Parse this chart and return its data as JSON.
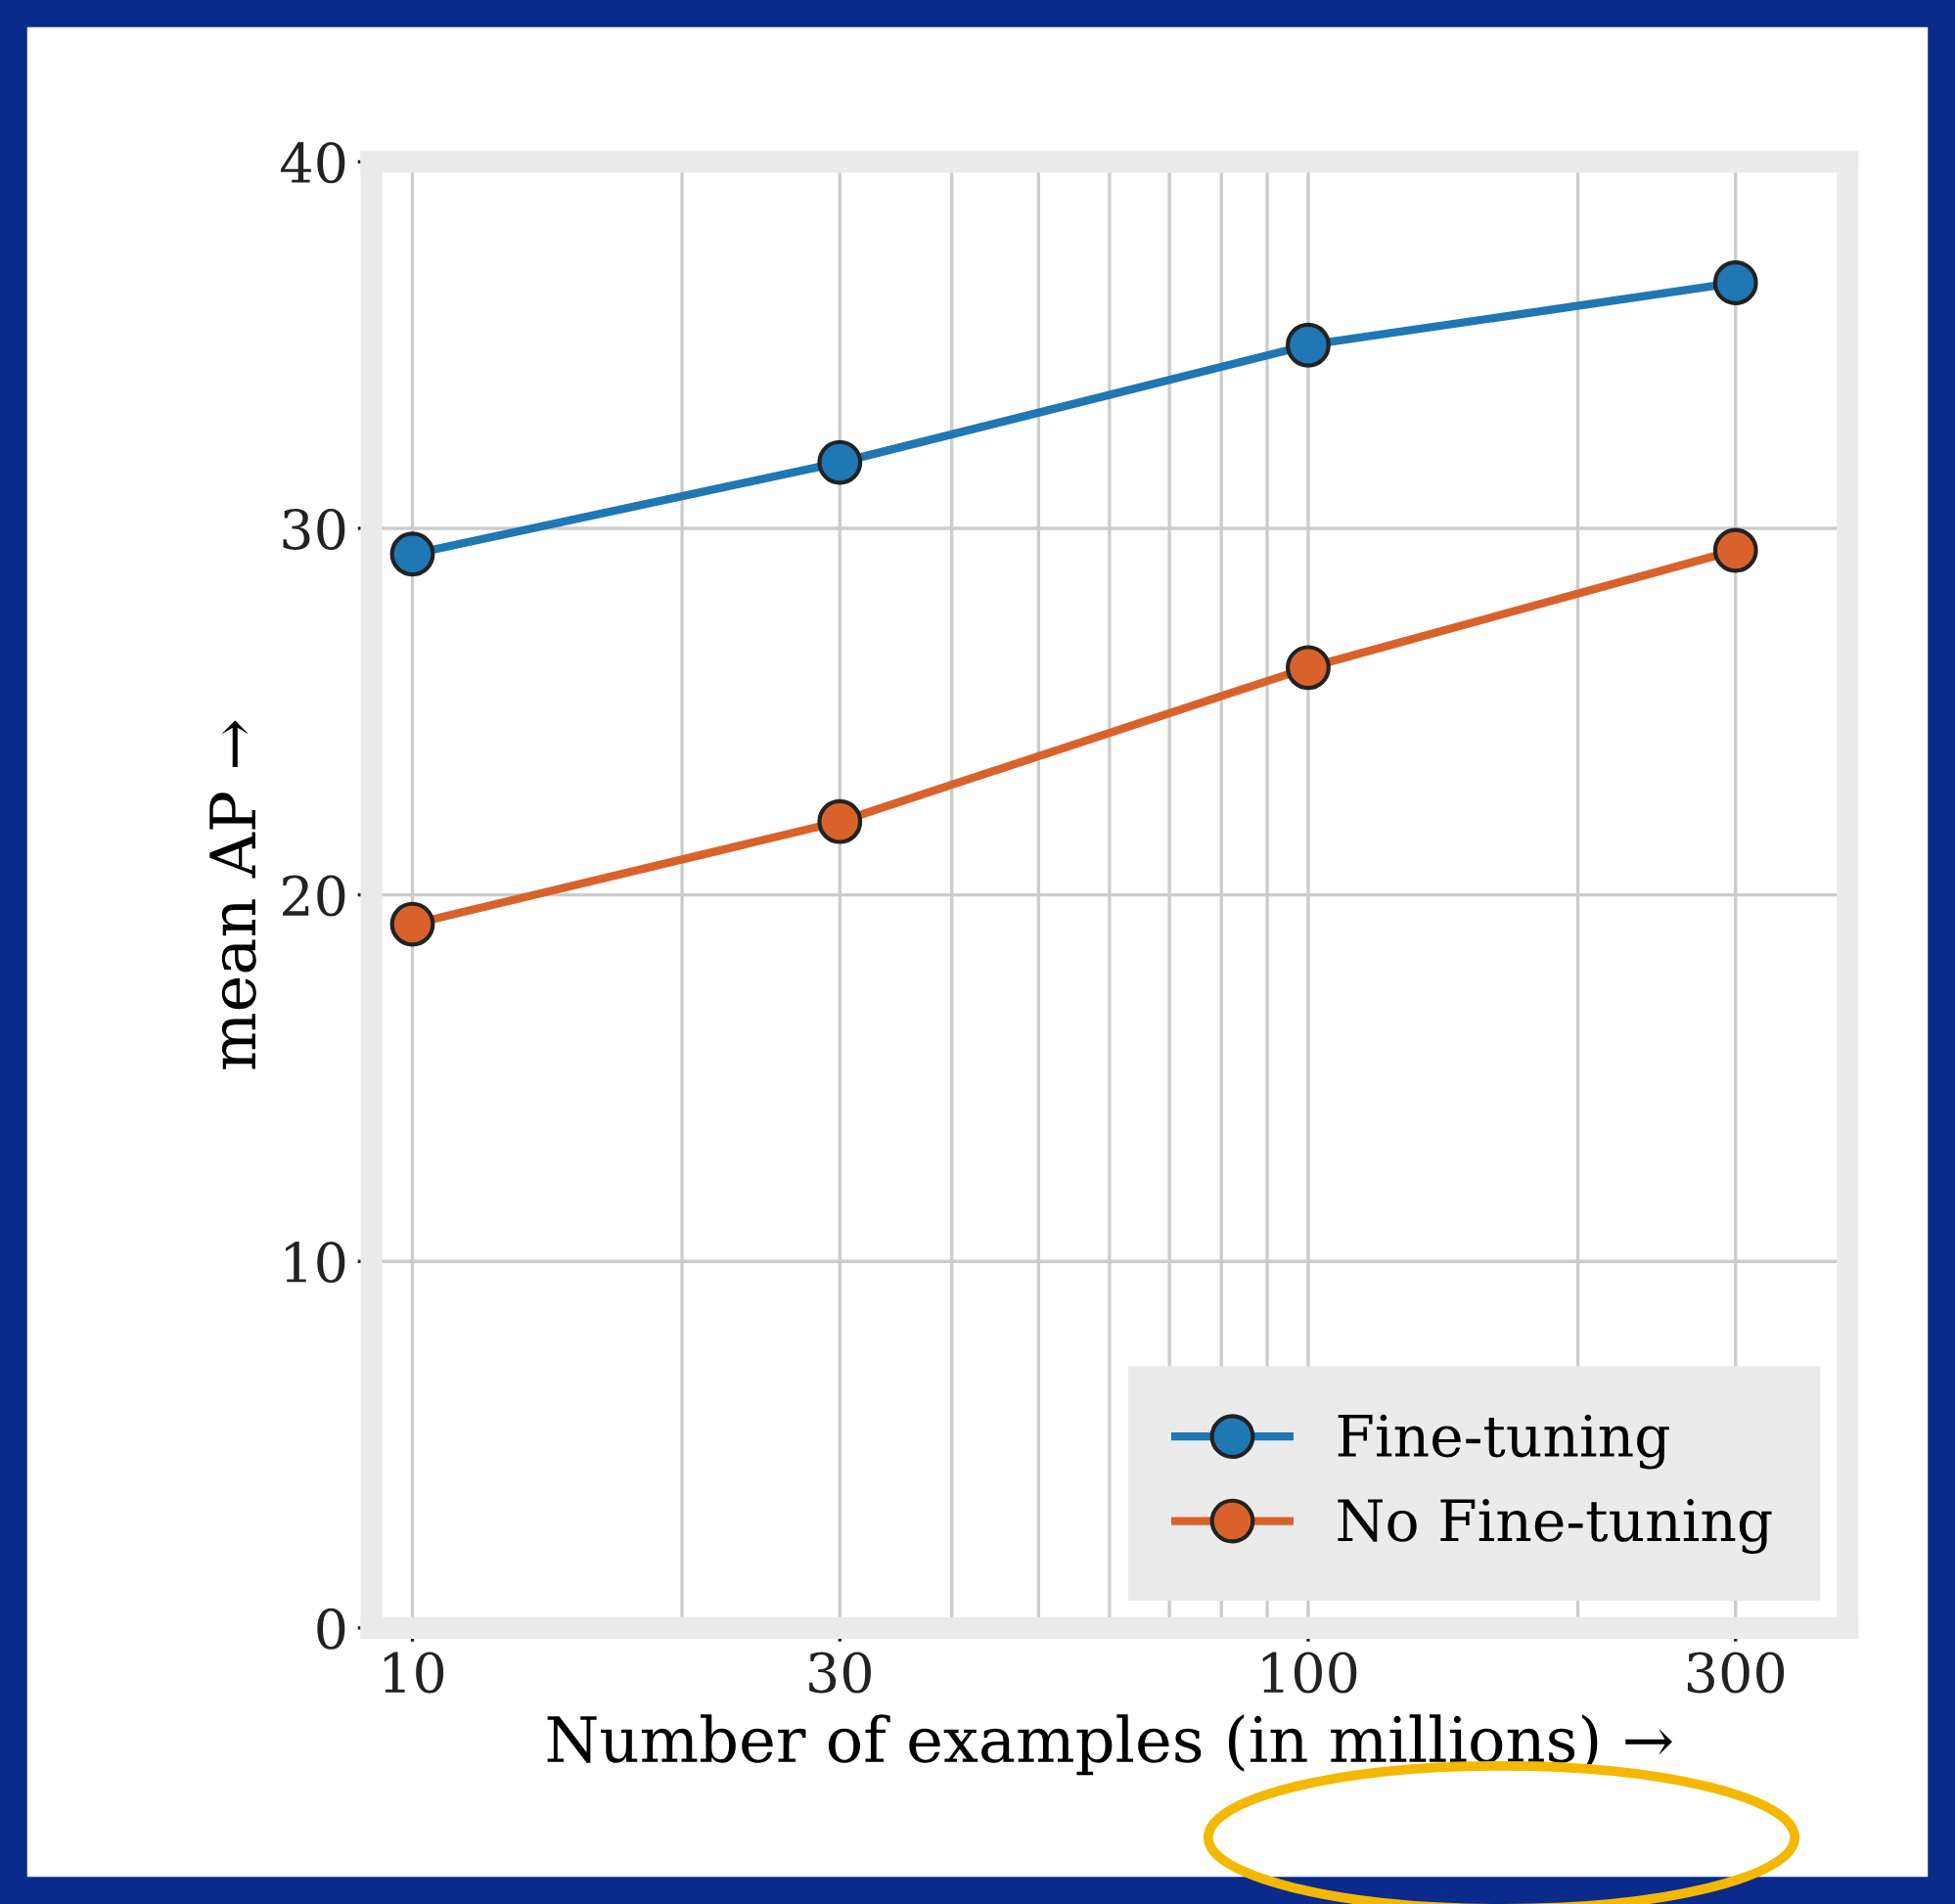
{
  "chart_data": {
    "type": "line",
    "xlabel": "Number of examples (in millions) →",
    "ylabel": "mean AP →",
    "x": [
      10,
      30,
      100,
      300
    ],
    "series": [
      {
        "name": "Fine-tuning",
        "color": "#1f77b4",
        "values": [
          29.3,
          31.8,
          35.0,
          36.7
        ]
      },
      {
        "name": "No Fine-tuning",
        "color": "#d9622b",
        "values": [
          19.2,
          22.0,
          26.2,
          29.4
        ]
      }
    ],
    "log": "x",
    "xlim": [
      9,
      400
    ],
    "xticks": [
      10,
      30,
      100,
      300
    ],
    "ylim": [
      0,
      40
    ],
    "yticks": [
      0,
      10,
      20,
      30,
      40
    ],
    "grid": true,
    "legend": "bottom right",
    "marker": "circle",
    "line_style": "solid"
  }
}
